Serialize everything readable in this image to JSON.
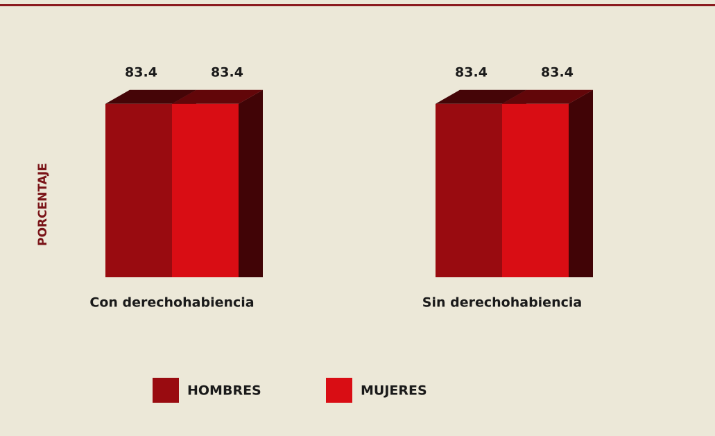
{
  "chart_data": {
    "type": "bar",
    "y_label": "PORCENTAJE",
    "categories": [
      "Con derechohabiencia",
      "Sin  derechohabiencia"
    ],
    "series": [
      {
        "name": "HOMBRES",
        "color": "#990b10",
        "values": [
          83.4,
          83.4
        ]
      },
      {
        "name": "MUJERES",
        "color": "#d90d14",
        "values": [
          83.4,
          83.4
        ]
      }
    ]
  }
}
